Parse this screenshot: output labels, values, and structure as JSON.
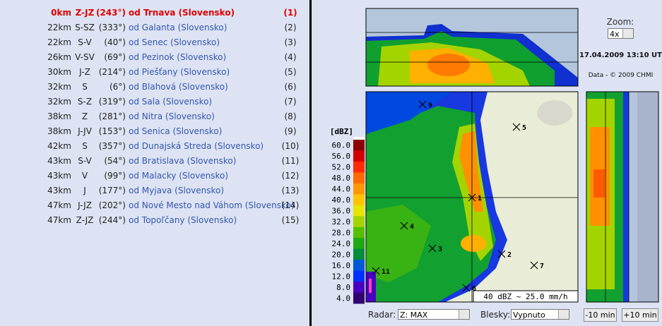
{
  "locations": [
    {
      "distance": "0km",
      "direction": "Z-JZ",
      "angle": "(243°)",
      "name": "od Trnava (Slovensko)",
      "index": "(1)"
    },
    {
      "distance": "22km",
      "direction": "S-SZ",
      "angle": "(333°)",
      "name": "od Galanta (Slovensko)",
      "index": "(2)"
    },
    {
      "distance": "22km",
      "direction": "S-V",
      "angle": "(40°)",
      "name": "od Senec (Slovensko)",
      "index": "(3)"
    },
    {
      "distance": "26km",
      "direction": "V-SV",
      "angle": "(69°)",
      "name": "od Pezinok (Slovensko)",
      "index": "(4)"
    },
    {
      "distance": "30km",
      "direction": "J-Z",
      "angle": "(214°)",
      "name": "od Piešťany (Slovensko)",
      "index": "(5)"
    },
    {
      "distance": "32km",
      "direction": "S",
      "angle": "(6°)",
      "name": "od Blahová (Slovensko)",
      "index": "(6)"
    },
    {
      "distance": "32km",
      "direction": "S-Z",
      "angle": "(319°)",
      "name": "od Sala (Slovensko)",
      "index": "(7)"
    },
    {
      "distance": "38km",
      "direction": "Z",
      "angle": "(281°)",
      "name": "od Nitra (Slovensko)",
      "index": "(8)"
    },
    {
      "distance": "38km",
      "direction": "J-JV",
      "angle": "(153°)",
      "name": "od Senica (Slovensko)",
      "index": "(9)"
    },
    {
      "distance": "42km",
      "direction": "S",
      "angle": "(357°)",
      "name": "od Dunajská Streda (Slovensko)",
      "index": "(10)"
    },
    {
      "distance": "43km",
      "direction": "S-V",
      "angle": "(54°)",
      "name": "od Bratislava (Slovensko)",
      "index": "(11)"
    },
    {
      "distance": "43km",
      "direction": "V",
      "angle": "(99°)",
      "name": "od Malacky (Slovensko)",
      "index": "(12)"
    },
    {
      "distance": "43km",
      "direction": "J",
      "angle": "(177°)",
      "name": "od Myjava (Slovensko)",
      "index": "(13)"
    },
    {
      "distance": "47km",
      "direction": "J-JZ",
      "angle": "(202°)",
      "name": "od Nové Mesto nad Váhom (Slovensko)",
      "index": "(14)"
    },
    {
      "distance": "47km",
      "direction": "Z-JZ",
      "angle": "(244°)",
      "name": "od Topoľčany (Slovensko)",
      "index": "(15)"
    }
  ],
  "zoom": {
    "label": "Zoom:",
    "value": "4x"
  },
  "timestamp": "17.04.2009 13:10 UT",
  "credit": "Data - © 2009 CHMI",
  "legend": {
    "title": "[dBZ]",
    "levels": [
      {
        "label": "60.0",
        "color": "#8b0000"
      },
      {
        "label": "56.0",
        "color": "#d40000"
      },
      {
        "label": "52.0",
        "color": "#ff2a00"
      },
      {
        "label": "48.0",
        "color": "#ff6a00"
      },
      {
        "label": "44.0",
        "color": "#ff9800"
      },
      {
        "label": "40.0",
        "color": "#ffc400"
      },
      {
        "label": "36.0",
        "color": "#e6e600"
      },
      {
        "label": "32.0",
        "color": "#a4d400"
      },
      {
        "label": "28.0",
        "color": "#54c000"
      },
      {
        "label": "24.0",
        "color": "#1ea814"
      },
      {
        "label": "20.0",
        "color": "#008c3c"
      },
      {
        "label": "16.0",
        "color": "#0058d8"
      },
      {
        "label": "12.0",
        "color": "#0030ff"
      },
      {
        "label": "8.0",
        "color": "#4a00c0"
      },
      {
        "label": "4.0",
        "color": "#300070"
      }
    ]
  },
  "map_markers": [
    "9",
    "5",
    "1",
    "4",
    "3",
    "2",
    "7",
    "11",
    "6"
  ],
  "rain_note": "40 dBZ ~ 25.0 mm/h",
  "controls": {
    "radar_label": "Radar:",
    "radar_value": "Z: MAX",
    "lightning_label": "Blesky:",
    "lightning_value": "Vypnuto",
    "back": "-10 min",
    "forward": "+10 min"
  }
}
